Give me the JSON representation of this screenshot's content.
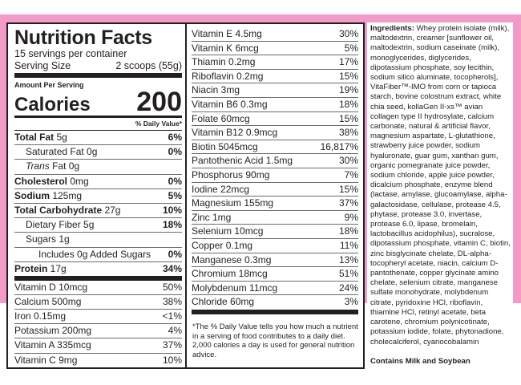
{
  "colors": {
    "frame": "#f29bc8",
    "text": "#231f20"
  },
  "facts": {
    "title": "Nutrition Facts",
    "servings": "15 servings per container",
    "serving_size_label": "Serving Size",
    "serving_size_value": "2 scoops (55g)",
    "amount_per_serving": "Amount Per Serving",
    "calories_label": "Calories",
    "calories_value": "200",
    "dv_header": "% Daily Value*",
    "main_rows": [
      {
        "bold": "Total Fat",
        "amt": " 5g",
        "dv": "6%",
        "indent": 0,
        "dvbold": true
      },
      {
        "bold": "",
        "amt": "Saturated Fat 0g",
        "dv": "0%",
        "indent": 1,
        "dvbold": true
      },
      {
        "bold": "",
        "italic": "Trans",
        "amt": " Fat 0g",
        "dv": "",
        "indent": 1
      },
      {
        "bold": "Cholesterol",
        "amt": " 0mg",
        "dv": "0%",
        "indent": 0,
        "dvbold": true
      },
      {
        "bold": "Sodium",
        "amt": " 125mg",
        "dv": "5%",
        "indent": 0,
        "dvbold": true
      },
      {
        "bold": "Total Carbohydrate",
        "amt": " 27g",
        "dv": "10%",
        "indent": 0,
        "dvbold": true
      },
      {
        "bold": "",
        "amt": "Dietary Fiber 5g",
        "dv": "18%",
        "indent": 1,
        "dvbold": true
      },
      {
        "bold": "",
        "amt": "Sugars 1g",
        "dv": "",
        "indent": 1
      },
      {
        "bold": "",
        "amt": "Includes 0g Added Sugars",
        "dv": "0%",
        "indent": 2,
        "dvbold": true
      },
      {
        "bold": "Protein",
        "amt": " 17g",
        "dv": "34%",
        "indent": 0,
        "dvbold": true,
        "thick": true
      }
    ],
    "vitamin_rows_left": [
      {
        "name": "Vitamin D 10mcg",
        "dv": "50%"
      },
      {
        "name": "Calcium 500mg",
        "dv": "38%"
      },
      {
        "name": "Iron 0.15mg",
        "dv": "<1%"
      },
      {
        "name": "Potassium 200mg",
        "dv": "4%"
      },
      {
        "name": "Vitamin A 335mcg",
        "dv": "37%"
      },
      {
        "name": "Vitamin C 9mg",
        "dv": "10%"
      }
    ],
    "vitamin_rows_right": [
      {
        "name": "Vitamin E 4.5mg",
        "dv": "30%"
      },
      {
        "name": "Vitamin K 6mcg",
        "dv": "5%"
      },
      {
        "name": "Thiamin 0.2mg",
        "dv": "17%"
      },
      {
        "name": "Riboflavin 0.2mg",
        "dv": "15%"
      },
      {
        "name": "Niacin 3mg",
        "dv": "19%"
      },
      {
        "name": "Vitamin B6 0.3mg",
        "dv": "18%"
      },
      {
        "name": "Folate 60mcg",
        "dv": "15%"
      },
      {
        "name": "Vitamin B12 0.9mcg",
        "dv": "38%"
      },
      {
        "name": "Biotin 5045mcg",
        "dv": "16,817%"
      },
      {
        "name": "Pantothenic Acid 1.5mg",
        "dv": "30%"
      },
      {
        "name": "Phosphorus 90mg",
        "dv": "7%"
      },
      {
        "name": "Iodine 22mcg",
        "dv": "15%"
      },
      {
        "name": "Magnesium 155mg",
        "dv": "37%"
      },
      {
        "name": "Zinc 1mg",
        "dv": "9%"
      },
      {
        "name": "Selenium 10mcg",
        "dv": "18%"
      },
      {
        "name": "Copper 0.1mg",
        "dv": "11%"
      },
      {
        "name": "Manganese 0.3mg",
        "dv": "13%"
      },
      {
        "name": "Chromium 18mcg",
        "dv": "51%"
      },
      {
        "name": "Molybdenum 11mcg",
        "dv": "24%"
      },
      {
        "name": "Chloride 60mg",
        "dv": "3%"
      }
    ],
    "footnote": "*The % Daily Value tells you how much a nutrient in a serving of food contributes to a daily diet. 2,000 calories a day is used for general nutrition advice."
  },
  "ingredients": {
    "label": "Ingredients:",
    "text": " Whey protein isolate (milk), maltodextrin, creamer [sunflower oil, maltodextrin, sodium caseinate (milk), monoglycerides, diglycerides, dipotassium phosphate, soy lecithin, sodium silico aluminate, tocopherols], VitaFiber™-IMO from corn or tapioca starch, bovine colostrum extract, white chia seed, kollaGen II-xs™ avian collagen type II hydrosylate, calcium carbonate, natural & artificial flavor, magnesium aspartate, L-glutathione, strawberry juice powder, sodium hyaluronate, guar gum, xanthan gum, organic pomegranate juice powder, sodium chloride, apple juice powder, dicalcium phosphate, enzyme blend (lactase, amylase, glucoamylase, alpha-galactosidase, cellulase, protease 4.5, phytase, protease 3.0, invertase, protease 6.0, lipase, bromelain, lactobacillus acidophilus), sucralose, dipotassium phosphate, vitamin C, biotin, zinc bisglycinate chelate, DL-alpha-tocopheryl acetate, niacin, calcium D-pantothenate, copper glycinate amino chelate, selenium citrate, manganese sulfate monohydrate, molybdenum citrate, pyridoxine HCl, riboflavin, thiamine HCl, retinyl acetate, beta carotene, chromium polynicotinate, potassium iodide, folate, phytonadione, cholecalciferol, cyanocobalamin",
    "contains": "Contains Milk and Soybean"
  }
}
